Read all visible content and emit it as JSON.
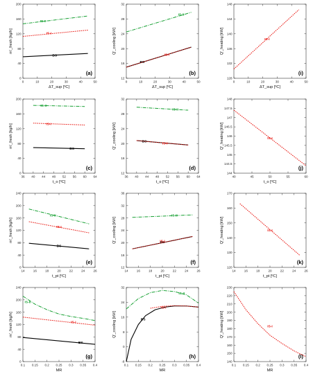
{
  "colors": {
    "BS": "#000000",
    "IS-I": "#e8150f",
    "IS-II": "#16a032",
    "frame": "#333333"
  },
  "chart_data": [
    {
      "type": "line",
      "panel_label": "(a)",
      "xlabel": "ΔT_sup [ºC]",
      "ylabel": "m'_fresh [kg/h]",
      "xlim": [
        0,
        50
      ],
      "ylim": [
        0,
        200
      ],
      "xticks": [
        "0",
        "10",
        "20",
        "30",
        "40",
        "50"
      ],
      "yticks": [
        "0",
        "40",
        "80",
        "120",
        "160",
        "200"
      ],
      "series": [
        {
          "name": "BS",
          "style": "solid",
          "x": [
            0,
            45
          ],
          "y": [
            58,
            67
          ],
          "label_at": [
            22,
            62
          ]
        },
        {
          "name": "IS-I",
          "style": "dotted",
          "x": [
            0,
            45
          ],
          "y": [
            113,
            130
          ],
          "label_at": [
            18,
            122
          ]
        },
        {
          "name": "IS-II",
          "style": "dashdot",
          "x": [
            0,
            45
          ],
          "y": [
            147,
            168
          ],
          "label_at": [
            14,
            154
          ]
        }
      ]
    },
    {
      "type": "line",
      "panel_label": "(b)",
      "xlabel": "ΔT_sup [ºC]",
      "ylabel": "Q'_cooling [kW]",
      "xlim": [
        0,
        50
      ],
      "ylim": [
        12,
        32
      ],
      "xticks": [
        "0",
        "10",
        "20",
        "30",
        "40",
        "50"
      ],
      "yticks": [
        "12",
        "16",
        "20",
        "24",
        "28",
        "32"
      ],
      "series": [
        {
          "name": "BS",
          "style": "solid",
          "x": [
            0,
            45
          ],
          "y": [
            15,
            20.4
          ],
          "label_at": [
            11,
            16.4
          ]
        },
        {
          "name": "IS-I",
          "style": "dotted",
          "x": [
            0,
            45
          ],
          "y": [
            15,
            20.4
          ],
          "label_at": [
            28,
            18.4
          ]
        },
        {
          "name": "IS-II",
          "style": "dashdot",
          "x": [
            0,
            45
          ],
          "y": [
            24.5,
            29.8
          ],
          "label_at": [
            38,
            29.2
          ]
        }
      ]
    },
    {
      "type": "line",
      "panel_label": "(i)",
      "xlabel": "ΔT_sup [ºC]",
      "ylabel": "Q'_heating [kW]",
      "xlim": [
        0,
        50
      ],
      "ylim": [
        128,
        148
      ],
      "xticks": [
        "0",
        "10",
        "20",
        "30",
        "40",
        "50"
      ],
      "yticks": [
        "128",
        "132",
        "136",
        "140",
        "144",
        "148"
      ],
      "series": [
        {
          "name": "IS-I",
          "style": "dotted",
          "x": [
            0,
            45
          ],
          "y": [
            130.5,
            146.5
          ],
          "label_at": [
            23,
            138.6
          ]
        }
      ]
    },
    {
      "type": "line",
      "panel_label": "(c)",
      "xlabel": "t_o [ºC]",
      "ylabel": "m'_fresh [kg/h]",
      "xlim": [
        36,
        64
      ],
      "ylim": [
        0,
        200
      ],
      "xticks": [
        "36",
        "40",
        "44",
        "48",
        "52",
        "56",
        "60",
        "64"
      ],
      "yticks": [
        "0",
        "40",
        "80",
        "120",
        "160",
        "200"
      ],
      "series": [
        {
          "name": "BS",
          "style": "solid",
          "x": [
            40,
            60
          ],
          "y": [
            69,
            66
          ],
          "label_at": [
            55,
            67
          ]
        },
        {
          "name": "IS-I",
          "style": "dotted",
          "x": [
            40,
            60
          ],
          "y": [
            135,
            130
          ],
          "label_at": [
            46,
            133
          ]
        },
        {
          "name": "IS-II",
          "style": "dashdot",
          "x": [
            40,
            60
          ],
          "y": [
            183,
            180
          ],
          "label_at": [
            44,
            182
          ]
        }
      ]
    },
    {
      "type": "line",
      "panel_label": "(d)",
      "xlabel": "t_o [ºC]",
      "ylabel": "Q'_cooling [kW]",
      "xlim": [
        36,
        64
      ],
      "ylim": [
        12,
        32
      ],
      "xticks": [
        "36",
        "40",
        "44",
        "48",
        "52",
        "56",
        "60",
        "64"
      ],
      "yticks": [
        "12",
        "16",
        "20",
        "24",
        "28",
        "32"
      ],
      "series": [
        {
          "name": "BS",
          "style": "solid",
          "x": [
            40,
            60
          ],
          "y": [
            20.8,
            19.6
          ],
          "label_at": [
            43,
            20.6
          ]
        },
        {
          "name": "IS-I",
          "style": "dotted",
          "x": [
            40,
            60
          ],
          "y": [
            20.8,
            19.6
          ],
          "label_at": [
            51,
            20.1
          ]
        },
        {
          "name": "IS-II",
          "style": "dashdot",
          "x": [
            40,
            60
          ],
          "y": [
            29.8,
            29.0
          ],
          "label_at": [
            55,
            29.2
          ]
        }
      ]
    },
    {
      "type": "line",
      "panel_label": "(j)",
      "xlabel": "t_o [ºC]",
      "ylabel": "Q'_heating [kW]",
      "xlim": [
        40,
        60
      ],
      "ylim": [
        144,
        148
      ],
      "xticks": [
        "40",
        "45",
        "50",
        "55",
        "60"
      ],
      "yticks": [
        "144",
        "144.5",
        "145",
        "145.5",
        "146",
        "146.5",
        "147",
        "147.5",
        "148"
      ],
      "series": [
        {
          "name": "IS-I",
          "style": "dotted",
          "x": [
            40,
            60
          ],
          "y": [
            147.4,
            144.4
          ],
          "label_at": [
            50,
            145.9
          ]
        }
      ]
    },
    {
      "type": "line",
      "panel_label": "(e)",
      "xlabel": "t_pt [ºC]",
      "ylabel": "m'_fresh [kg/h]",
      "xlim": [
        14,
        26
      ],
      "ylim": [
        0,
        240
      ],
      "xticks": [
        "14",
        "16",
        "18",
        "20",
        "22",
        "24",
        "26"
      ],
      "yticks": [
        "0",
        "40",
        "80",
        "120",
        "160",
        "200",
        "240"
      ],
      "series": [
        {
          "name": "BS",
          "style": "solid",
          "x": [
            15,
            25
          ],
          "y": [
            78,
            60
          ],
          "label_at": [
            20,
            70
          ]
        },
        {
          "name": "IS-I",
          "style": "dotted",
          "x": [
            15,
            25
          ],
          "y": [
            148,
            112
          ],
          "label_at": [
            20,
            132
          ]
        },
        {
          "name": "IS-II",
          "style": "dashdot",
          "x": [
            15,
            25
          ],
          "y": [
            189,
            141
          ],
          "label_at": [
            19,
            168
          ]
        }
      ]
    },
    {
      "type": "line",
      "panel_label": "(f)",
      "xlabel": "t_pt [ºC]",
      "ylabel": "Q'_cooling [kW]",
      "xlim": [
        14,
        26
      ],
      "ylim": [
        12,
        36
      ],
      "xticks": [
        "14",
        "16",
        "18",
        "20",
        "22",
        "24",
        "26"
      ],
      "yticks": [
        "12",
        "16",
        "20",
        "24",
        "28",
        "32",
        "36"
      ],
      "series": [
        {
          "name": "BS",
          "style": "solid",
          "x": [
            15,
            25
          ],
          "y": [
            18,
            22
          ],
          "label_at": [
            20,
            20.2
          ]
        },
        {
          "name": "IS-I",
          "style": "dotted",
          "x": [
            15,
            25
          ],
          "y": [
            18,
            22
          ],
          "label_at": [
            20,
            20.6
          ]
        },
        {
          "name": "IS-II",
          "style": "dashdot",
          "x": [
            15,
            25
          ],
          "y": [
            28.2,
            29.0
          ],
          "label_at": [
            22,
            28.9
          ]
        }
      ]
    },
    {
      "type": "line",
      "panel_label": "(k)",
      "xlabel": "t_pt [ºC]",
      "ylabel": "Q'_heating [kW]",
      "xlim": [
        14,
        26
      ],
      "ylim": [
        120,
        170
      ],
      "xticks": [
        "14",
        "16",
        "18",
        "20",
        "22",
        "24",
        "26"
      ],
      "yticks": [
        "120",
        "130",
        "140",
        "150",
        "160",
        "170"
      ],
      "series": [
        {
          "name": "IS-I",
          "style": "dotted",
          "x": [
            15,
            25
          ],
          "y": [
            163,
            128
          ],
          "label_at": [
            20,
            145
          ]
        }
      ]
    },
    {
      "type": "line",
      "panel_label": "(g)",
      "xlabel": "MR",
      "ylabel": "m'_fresh [kg/h]",
      "xlim": [
        0.1,
        0.4
      ],
      "ylim": [
        0,
        240
      ],
      "xticks": [
        "0.1",
        "0.15",
        "0.2",
        "0.25",
        "0.3",
        "0.35",
        "0.4"
      ],
      "yticks": [
        "0",
        "40",
        "80",
        "120",
        "160",
        "200",
        "240"
      ],
      "series": [
        {
          "name": "BS",
          "style": "solid",
          "x": [
            0.1,
            0.4
          ],
          "y": [
            78,
            56
          ],
          "label_at": [
            0.34,
            62
          ]
        },
        {
          "name": "IS-I",
          "style": "dotted",
          "x": [
            0.1,
            0.4
          ],
          "y": [
            144,
            118
          ],
          "label_at": [
            0.31,
            128
          ]
        },
        {
          "name": "IS-II",
          "style": "dashdot",
          "x": [
            0.1,
            0.15,
            0.2,
            0.25,
            0.3,
            0.35,
            0.4
          ],
          "y": [
            212,
            186,
            168,
            154,
            146,
            140,
            133
          ],
          "label_at": [
            0.12,
            193
          ]
        }
      ]
    },
    {
      "type": "line",
      "panel_label": "(h)",
      "xlabel": "MR",
      "ylabel": "Q'_cooling [kW]",
      "xlim": [
        0.1,
        0.4
      ],
      "ylim": [
        -8,
        32
      ],
      "xticks": [
        "0.1",
        "0.15",
        "0.2",
        "0.25",
        "0.3",
        "0.35",
        "0.4"
      ],
      "yticks": [
        "-8",
        "0",
        "8",
        "16",
        "24",
        "32"
      ],
      "series": [
        {
          "name": "BS",
          "style": "solid",
          "x": [
            0.1,
            0.12,
            0.15,
            0.18,
            0.22,
            0.26,
            0.3,
            0.35,
            0.4
          ],
          "y": [
            -8,
            4,
            12,
            16.8,
            20,
            21.4,
            22,
            22,
            21.4
          ],
          "label_at": [
            0.17,
            14.8
          ]
        },
        {
          "name": "IS-I",
          "style": "dotted",
          "x": [
            0.2,
            0.25,
            0.3,
            0.35,
            0.4
          ],
          "y": [
            20.8,
            21.8,
            22.2,
            22,
            21.4
          ],
          "label_at": [
            0.255,
            21.2
          ]
        },
        {
          "name": "IS-II",
          "style": "dashdot",
          "x": [
            0.1,
            0.15,
            0.2,
            0.25,
            0.3,
            0.35,
            0.4
          ],
          "y": [
            20.4,
            26,
            29.2,
            30.4,
            29.8,
            28,
            23.6
          ],
          "label_at": [
            0.33,
            28.8
          ]
        }
      ]
    },
    {
      "type": "line",
      "panel_label": "(l)",
      "xlabel": "MR",
      "ylabel": "Q'_heating [kW]",
      "xlim": [
        0.1,
        0.4
      ],
      "ylim": [
        140,
        230
      ],
      "xticks": [
        "0.1",
        "0.15",
        "0.2",
        "0.25",
        "0.3",
        "0.35",
        "0.4"
      ],
      "yticks": [
        "140",
        "150",
        "160",
        "170",
        "180",
        "190",
        "200",
        "210",
        "220",
        "230"
      ],
      "series": [
        {
          "name": "IS-I",
          "style": "dotted",
          "x": [
            0.1,
            0.15,
            0.2,
            0.25,
            0.3,
            0.35,
            0.4
          ],
          "y": [
            225,
            203,
            186,
            172,
            162,
            153,
            146
          ],
          "label_at": [
            0.25,
            183
          ]
        }
      ]
    }
  ]
}
